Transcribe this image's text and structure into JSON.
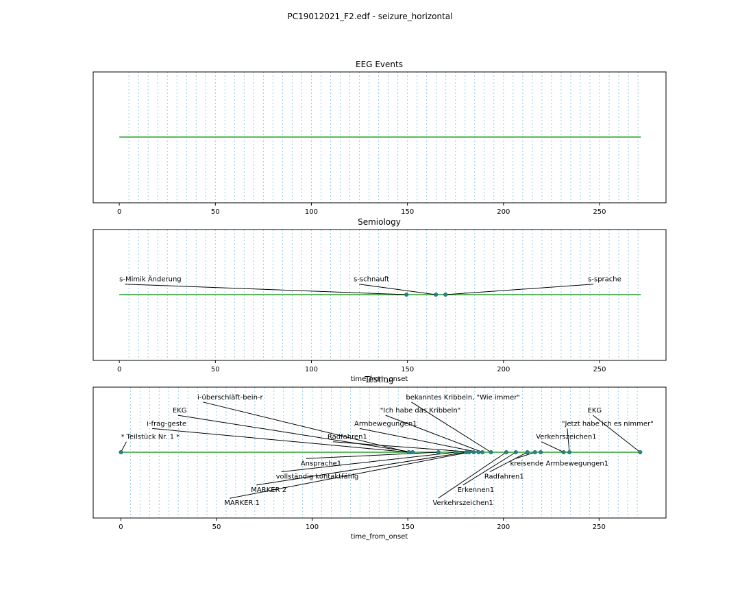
{
  "figure": {
    "title": "PC19012021_F2.edf - seizure_horizontal"
  },
  "chart_data": [
    {
      "type": "scatter",
      "title": "EEG Events",
      "xlabel": "",
      "xlim": [
        -13.6,
        284.6
      ],
      "xticks": [
        0,
        50,
        100,
        150,
        200,
        250
      ],
      "baseline_range": [
        0,
        271.5
      ],
      "grid": "dotted vertical lines, every 5 units",
      "points": []
    },
    {
      "type": "scatter",
      "title": "Semiology",
      "xlabel": "time_from_onset",
      "xlim": [
        -13.6,
        284.6
      ],
      "xticks": [
        0,
        50,
        100,
        150,
        200,
        250
      ],
      "baseline_range": [
        0,
        271.5
      ],
      "grid": "dotted vertical lines, every 5 units",
      "points": [
        {
          "x": 149.5,
          "label": "s-Mimik Änderung",
          "tx": 0,
          "row": 1
        },
        {
          "x": 164.8,
          "label": "s-schnauft",
          "tx": 122,
          "row": 1
        },
        {
          "x": 169.8,
          "label": "s-sprache",
          "tx": 244,
          "row": 1
        }
      ]
    },
    {
      "type": "scatter",
      "title": "Testing",
      "xlabel": "time_from_onset",
      "xlim": [
        -14.5,
        285.0
      ],
      "xticks": [
        0,
        50,
        100,
        150,
        200,
        250
      ],
      "baseline_range": [
        0,
        271.5
      ],
      "grid": "dotted vertical lines, every 5 units",
      "points": [
        {
          "x": 0,
          "label": "* Teilstück Nr.  1 *",
          "tx": 0,
          "row": 1
        },
        {
          "x": 150.5,
          "label": "i-frag-geste",
          "tx": 13.5,
          "row": 2
        },
        {
          "x": 152.5,
          "label": "EKG",
          "tx": 27,
          "row": 3
        },
        {
          "x": 150.5,
          "label": "i-überschläft-bein-r",
          "tx": 40,
          "row": 4
        },
        {
          "x": 166.0,
          "label": "Ansprache1",
          "tx": 94,
          "row": -1
        },
        {
          "x": 175.0,
          "label": "vollständig kontaktfähig",
          "tx": 81,
          "row": -2
        },
        {
          "x": 180.5,
          "label": "MARKER 2",
          "tx": 68,
          "row": -3
        },
        {
          "x": 182.0,
          "label": "MARKER 1",
          "tx": 54,
          "row": -4
        },
        {
          "x": 184.5,
          "label": "Radfahren1",
          "tx": 108,
          "row": 1
        },
        {
          "x": 187.0,
          "label": "Armbewegungen1",
          "tx": 122,
          "row": 2
        },
        {
          "x": 189.0,
          "label": "\"Ich habe das Kribbeln\"",
          "tx": 135.5,
          "row": 3
        },
        {
          "x": 193.5,
          "label": "bekanntes Kribbeln, \"Wie immer\"",
          "tx": 149,
          "row": 4
        },
        {
          "x": 201.5,
          "label": "Verkehrszeichen1",
          "tx": 163,
          "row": -4
        },
        {
          "x": 206.5,
          "label": "Erkennen1",
          "tx": 176,
          "row": -3
        },
        {
          "x": 212.5,
          "label": "Radfahren1",
          "tx": 190,
          "row": -2
        },
        {
          "x": 216.5,
          "label": "kreisende Armbewegungen1",
          "tx": 203.5,
          "row": -1
        },
        {
          "x": 219.5,
          "label": "",
          "tx": 203.5,
          "row": -1
        },
        {
          "x": 231.5,
          "label": "Verkehrszeichen1",
          "tx": 217,
          "row": 1
        },
        {
          "x": 234.5,
          "label": "\"Jetzt habe ich es nimmer\"",
          "tx": 230.5,
          "row": 2
        },
        {
          "x": 271.5,
          "label": "EKG",
          "tx": 244,
          "row": 3
        }
      ]
    }
  ]
}
